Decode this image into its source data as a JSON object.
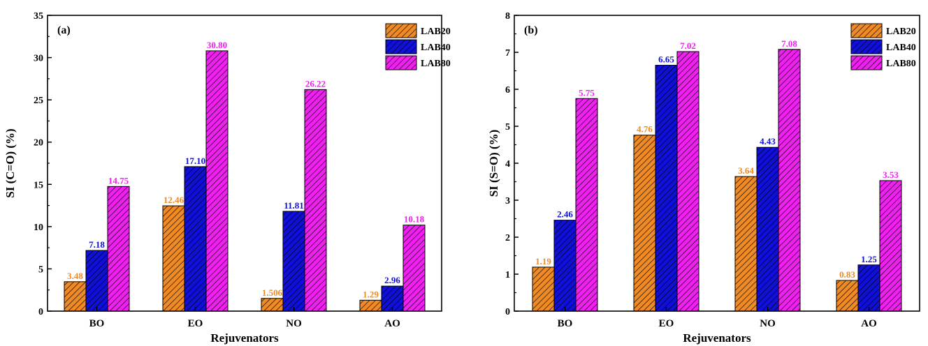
{
  "chart_data": [
    {
      "type": "bar",
      "panel_label": "(a)",
      "title": "",
      "xlabel": "Rejuvenators",
      "ylabel": "SI (C=O) (%)",
      "ylim": [
        0,
        35
      ],
      "yticks": [
        0,
        5,
        10,
        15,
        20,
        25,
        30,
        35
      ],
      "categories": [
        "BO",
        "EO",
        "NO",
        "AO"
      ],
      "legend_position": "top-right",
      "series": [
        {
          "name": "LAB20",
          "color": "#F08A24",
          "values": [
            3.48,
            12.46,
            1.506,
            1.29
          ],
          "labels": [
            "3.48",
            "12.46",
            "1.506",
            "1.29"
          ]
        },
        {
          "name": "LAB40",
          "color": "#1010D8",
          "values": [
            7.18,
            17.1,
            11.81,
            2.96
          ],
          "labels": [
            "7.18",
            "17.10",
            "11.81",
            "2.96"
          ]
        },
        {
          "name": "LAB80",
          "color": "#F020F0",
          "values": [
            14.75,
            30.8,
            26.22,
            10.18
          ],
          "labels": [
            "14.75",
            "30.80",
            "26.22",
            "10.18"
          ]
        }
      ]
    },
    {
      "type": "bar",
      "panel_label": "(b)",
      "title": "",
      "xlabel": "Rejuvenators",
      "ylabel": "SI (S=O) (%)",
      "ylim": [
        0,
        8
      ],
      "yticks": [
        0,
        1,
        2,
        3,
        4,
        5,
        6,
        7,
        8
      ],
      "categories": [
        "BO",
        "EO",
        "NO",
        "AO"
      ],
      "legend_position": "top-right",
      "series": [
        {
          "name": "LAB20",
          "color": "#F08A24",
          "values": [
            1.19,
            4.76,
            3.64,
            0.83
          ],
          "labels": [
            "1.19",
            "4.76",
            "3.64",
            "0.83"
          ]
        },
        {
          "name": "LAB40",
          "color": "#1010D8",
          "values": [
            2.46,
            6.65,
            4.43,
            1.25
          ],
          "labels": [
            "2.46",
            "6.65",
            "4.43",
            "1.25"
          ]
        },
        {
          "name": "LAB80",
          "color": "#F020F0",
          "values": [
            5.75,
            7.02,
            7.08,
            3.53
          ],
          "labels": [
            "5.75",
            "7.02",
            "7.08",
            "3.53"
          ]
        }
      ]
    }
  ]
}
